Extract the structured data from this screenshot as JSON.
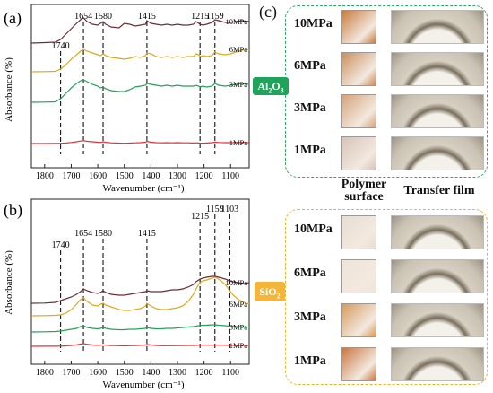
{
  "panels": {
    "a": {
      "label": "(a)",
      "ylabel": "Absorbance (%)",
      "xlabel": "Wavenumber (cm⁻¹)",
      "peaks": [
        "1740",
        "1654",
        "1580",
        "1415",
        "1215",
        "1159"
      ],
      "curve_labels": [
        "10MPa",
        "6MPa",
        "3MPa",
        "1MPa"
      ]
    },
    "b": {
      "label": "(b)",
      "ylabel": "Absorbance (%)",
      "xlabel": "Wavenumber (cm⁻¹)",
      "peaks": [
        "1740",
        "1654",
        "1580",
        "1415",
        "1215",
        "1159",
        "1103"
      ],
      "curve_labels": [
        "10MPa",
        "6MPa",
        "3MPa",
        "1MPa"
      ]
    },
    "c": {
      "label": "(c)",
      "al2o3_tag": "Al2O3",
      "sio2_tag": "SiO2",
      "polymer_header": "Polymer surface",
      "polymer_header_1": "Polymer",
      "polymer_header_2": "surface",
      "film_header": "Transfer film",
      "rows_al2o3": [
        "10MPa",
        "6MPa",
        "3MPa",
        "1MPa"
      ],
      "rows_sio2": [
        "10MPa",
        "6MPa",
        "3MPa",
        "1MPa"
      ]
    }
  },
  "colors": {
    "10MPa": "#6b2e36",
    "6MPa": "#e0a81c",
    "3MPa": "#22a35a",
    "1MPa": "#e0303a",
    "al2o3_accent": "#1fa35a",
    "sio2_accent": "#f0b429"
  },
  "chart_data": [
    {
      "type": "line",
      "title": "",
      "xlabel": "Wavenumber (cm⁻¹)",
      "ylabel": "Absorbance (%)",
      "xlim": [
        1850,
        1030
      ],
      "x_ticks": [
        1800,
        1700,
        1600,
        1500,
        1400,
        1300,
        1200,
        1100
      ],
      "y_ticks": false,
      "reference_lines": [
        1740,
        1654,
        1580,
        1415,
        1215,
        1159
      ],
      "series": [
        {
          "name": "10MPa",
          "x": [
            1850,
            1800,
            1760,
            1740,
            1720,
            1700,
            1680,
            1665,
            1654,
            1640,
            1620,
            1600,
            1590,
            1580,
            1570,
            1550,
            1520,
            1500,
            1480,
            1460,
            1440,
            1420,
            1415,
            1400,
            1380,
            1360,
            1340,
            1320,
            1300,
            1280,
            1260,
            1240,
            1230,
            1220,
            1215,
            1205,
            1190,
            1170,
            1159,
            1145,
            1120,
            1100,
            1080,
            1060,
            1030
          ],
          "y": [
            3.2,
            3.25,
            3.3,
            3.6,
            4.2,
            4.8,
            5.4,
            5.8,
            6.0,
            5.6,
            5.3,
            5.2,
            5.4,
            5.6,
            5.3,
            5.0,
            4.9,
            5.4,
            5.3,
            5.1,
            5.2,
            5.3,
            5.7,
            5.4,
            5.3,
            5.2,
            5.3,
            5.2,
            5.3,
            5.2,
            5.2,
            5.3,
            5.6,
            5.4,
            5.3,
            5.2,
            5.3,
            5.5,
            5.8,
            5.7,
            5.5,
            5.5,
            5.6,
            5.7,
            5.6
          ]
        },
        {
          "name": "6MPa",
          "x": [
            1850,
            1800,
            1760,
            1740,
            1720,
            1700,
            1680,
            1665,
            1654,
            1640,
            1620,
            1600,
            1590,
            1580,
            1570,
            1550,
            1520,
            1500,
            1480,
            1460,
            1440,
            1420,
            1415,
            1400,
            1380,
            1360,
            1340,
            1320,
            1300,
            1280,
            1260,
            1240,
            1230,
            1220,
            1215,
            1205,
            1190,
            1170,
            1159,
            1145,
            1120,
            1100,
            1080,
            1060,
            1030
          ],
          "y": [
            1.6,
            1.62,
            1.65,
            1.9,
            2.4,
            3.0,
            3.5,
            3.9,
            4.1,
            3.9,
            3.7,
            3.5,
            3.4,
            3.6,
            3.4,
            3.2,
            3.1,
            3.0,
            3.1,
            3.3,
            3.2,
            3.4,
            3.7,
            3.6,
            3.3,
            3.2,
            3.3,
            3.2,
            3.3,
            3.2,
            3.3,
            3.3,
            3.6,
            3.5,
            3.3,
            3.4,
            3.3,
            3.4,
            3.8,
            3.6,
            3.5,
            3.6,
            3.8,
            4.0,
            4.1
          ]
        },
        {
          "name": "3MPa",
          "x": [
            1850,
            1800,
            1760,
            1740,
            1720,
            1700,
            1680,
            1665,
            1654,
            1640,
            1620,
            1600,
            1590,
            1580,
            1570,
            1550,
            1520,
            1500,
            1480,
            1460,
            1440,
            1420,
            1415,
            1400,
            1380,
            1360,
            1340,
            1320,
            1300,
            1280,
            1260,
            1240,
            1230,
            1220,
            1215,
            1205,
            1190,
            1170,
            1159,
            1145,
            1120,
            1100,
            1080,
            1060,
            1030
          ],
          "y": [
            0.8,
            0.82,
            0.85,
            1.2,
            1.8,
            2.4,
            2.9,
            3.2,
            3.3,
            3.1,
            2.8,
            2.6,
            2.4,
            2.5,
            2.3,
            2.1,
            2.0,
            2.0,
            2.2,
            2.5,
            2.6,
            2.7,
            2.9,
            2.8,
            2.7,
            2.6,
            2.7,
            2.6,
            2.7,
            2.6,
            2.6,
            2.6,
            2.7,
            2.6,
            2.5,
            2.6,
            2.5,
            2.6,
            2.9,
            2.7,
            2.6,
            2.7,
            2.8,
            2.9,
            2.8
          ]
        },
        {
          "name": "1MPa",
          "x": [
            1850,
            1800,
            1760,
            1740,
            1720,
            1700,
            1680,
            1665,
            1654,
            1640,
            1620,
            1600,
            1590,
            1580,
            1570,
            1550,
            1520,
            1500,
            1480,
            1460,
            1440,
            1420,
            1415,
            1400,
            1380,
            1360,
            1340,
            1320,
            1300,
            1280,
            1260,
            1240,
            1230,
            1220,
            1215,
            1205,
            1190,
            1170,
            1159,
            1145,
            1120,
            1100,
            1080,
            1060,
            1030
          ],
          "y": [
            0.3,
            0.3,
            0.32,
            0.33,
            0.36,
            0.42,
            0.5,
            0.58,
            0.62,
            0.55,
            0.5,
            0.45,
            0.42,
            0.5,
            0.44,
            0.38,
            0.35,
            0.33,
            0.35,
            0.38,
            0.4,
            0.45,
            0.55,
            0.45,
            0.4,
            0.38,
            0.4,
            0.38,
            0.4,
            0.38,
            0.38,
            0.36,
            0.38,
            0.36,
            0.35,
            0.34,
            0.36,
            0.4,
            0.45,
            0.42,
            0.4,
            0.4,
            0.42,
            0.42,
            0.4
          ]
        }
      ]
    },
    {
      "type": "line",
      "title": "",
      "xlabel": "Wavenumber (cm⁻¹)",
      "ylabel": "Absorbance (%)",
      "xlim": [
        1850,
        1030
      ],
      "x_ticks": [
        1800,
        1700,
        1600,
        1500,
        1400,
        1300,
        1200,
        1100
      ],
      "y_ticks": false,
      "reference_lines": [
        1740,
        1654,
        1580,
        1415,
        1215,
        1159,
        1103
      ],
      "series": [
        {
          "name": "10MPa",
          "x": [
            1850,
            1800,
            1760,
            1740,
            1720,
            1700,
            1680,
            1665,
            1654,
            1640,
            1620,
            1600,
            1590,
            1580,
            1570,
            1550,
            1520,
            1500,
            1480,
            1460,
            1440,
            1420,
            1415,
            1400,
            1380,
            1360,
            1340,
            1320,
            1300,
            1280,
            1260,
            1240,
            1230,
            1220,
            1215,
            1205,
            1190,
            1170,
            1159,
            1145,
            1120,
            1103,
            1090,
            1070,
            1050,
            1030
          ],
          "y": [
            4.6,
            4.62,
            4.7,
            4.9,
            5.1,
            5.3,
            5.6,
            5.9,
            6.2,
            6.0,
            5.8,
            5.7,
            5.8,
            6.0,
            5.8,
            5.6,
            5.5,
            5.5,
            5.6,
            5.7,
            5.8,
            5.9,
            6.0,
            5.9,
            5.9,
            5.9,
            6.0,
            6.1,
            6.1,
            6.2,
            6.4,
            6.7,
            7.0,
            7.2,
            7.3,
            7.4,
            7.5,
            7.6,
            7.6,
            7.5,
            7.3,
            7.1,
            7.0,
            6.9,
            6.8,
            6.9
          ]
        },
        {
          "name": "6MPa",
          "x": [
            1850,
            1800,
            1760,
            1740,
            1720,
            1700,
            1680,
            1665,
            1654,
            1640,
            1620,
            1600,
            1590,
            1580,
            1570,
            1550,
            1520,
            1500,
            1480,
            1460,
            1440,
            1420,
            1415,
            1400,
            1380,
            1360,
            1340,
            1320,
            1300,
            1280,
            1260,
            1240,
            1230,
            1220,
            1215,
            1205,
            1190,
            1170,
            1159,
            1145,
            1120,
            1103,
            1090,
            1070,
            1050,
            1030
          ],
          "y": [
            2.6,
            2.62,
            2.65,
            2.7,
            2.9,
            3.3,
            3.9,
            4.4,
            4.6,
            4.2,
            3.8,
            3.7,
            3.9,
            4.0,
            3.8,
            3.6,
            3.3,
            3.2,
            3.2,
            3.3,
            3.4,
            3.7,
            4.0,
            3.7,
            3.4,
            3.3,
            3.3,
            3.4,
            3.5,
            3.7,
            4.2,
            5.0,
            5.6,
            6.1,
            6.3,
            6.5,
            6.6,
            6.8,
            6.9,
            6.7,
            6.1,
            5.4,
            4.9,
            4.4,
            4.1,
            3.9
          ]
        },
        {
          "name": "3MPa",
          "x": [
            1850,
            1800,
            1760,
            1740,
            1720,
            1700,
            1680,
            1665,
            1654,
            1640,
            1620,
            1600,
            1590,
            1580,
            1570,
            1550,
            1520,
            1500,
            1480,
            1460,
            1440,
            1420,
            1415,
            1400,
            1380,
            1360,
            1340,
            1320,
            1300,
            1280,
            1260,
            1240,
            1230,
            1220,
            1215,
            1205,
            1190,
            1170,
            1159,
            1145,
            1120,
            1103,
            1090,
            1070,
            1050,
            1030
          ],
          "y": [
            1.2,
            1.22,
            1.25,
            1.3,
            1.4,
            1.5,
            1.6,
            1.8,
            1.9,
            1.7,
            1.6,
            1.55,
            1.6,
            1.7,
            1.6,
            1.5,
            1.45,
            1.45,
            1.5,
            1.5,
            1.55,
            1.6,
            1.7,
            1.6,
            1.55,
            1.55,
            1.6,
            1.6,
            1.65,
            1.7,
            1.75,
            1.8,
            1.85,
            1.9,
            1.9,
            1.95,
            1.95,
            2.0,
            2.0,
            1.95,
            1.9,
            1.85,
            1.8,
            1.8,
            1.75,
            1.75
          ]
        },
        {
          "name": "1MPa",
          "x": [
            1850,
            1800,
            1760,
            1740,
            1720,
            1700,
            1680,
            1665,
            1654,
            1640,
            1620,
            1600,
            1590,
            1580,
            1570,
            1550,
            1520,
            1500,
            1480,
            1460,
            1440,
            1420,
            1415,
            1400,
            1380,
            1360,
            1340,
            1320,
            1300,
            1280,
            1260,
            1240,
            1230,
            1220,
            1215,
            1205,
            1190,
            1170,
            1159,
            1145,
            1120,
            1103,
            1090,
            1070,
            1050,
            1030
          ],
          "y": [
            0.45,
            0.46,
            0.46,
            0.47,
            0.5,
            0.55,
            0.62,
            0.7,
            0.75,
            0.68,
            0.6,
            0.56,
            0.58,
            0.62,
            0.58,
            0.54,
            0.52,
            0.5,
            0.52,
            0.54,
            0.56,
            0.6,
            0.66,
            0.6,
            0.55,
            0.52,
            0.52,
            0.52,
            0.53,
            0.54,
            0.55,
            0.55,
            0.56,
            0.57,
            0.57,
            0.58,
            0.58,
            0.58,
            0.59,
            0.58,
            0.57,
            0.56,
            0.56,
            0.55,
            0.55,
            0.55
          ]
        }
      ]
    }
  ]
}
